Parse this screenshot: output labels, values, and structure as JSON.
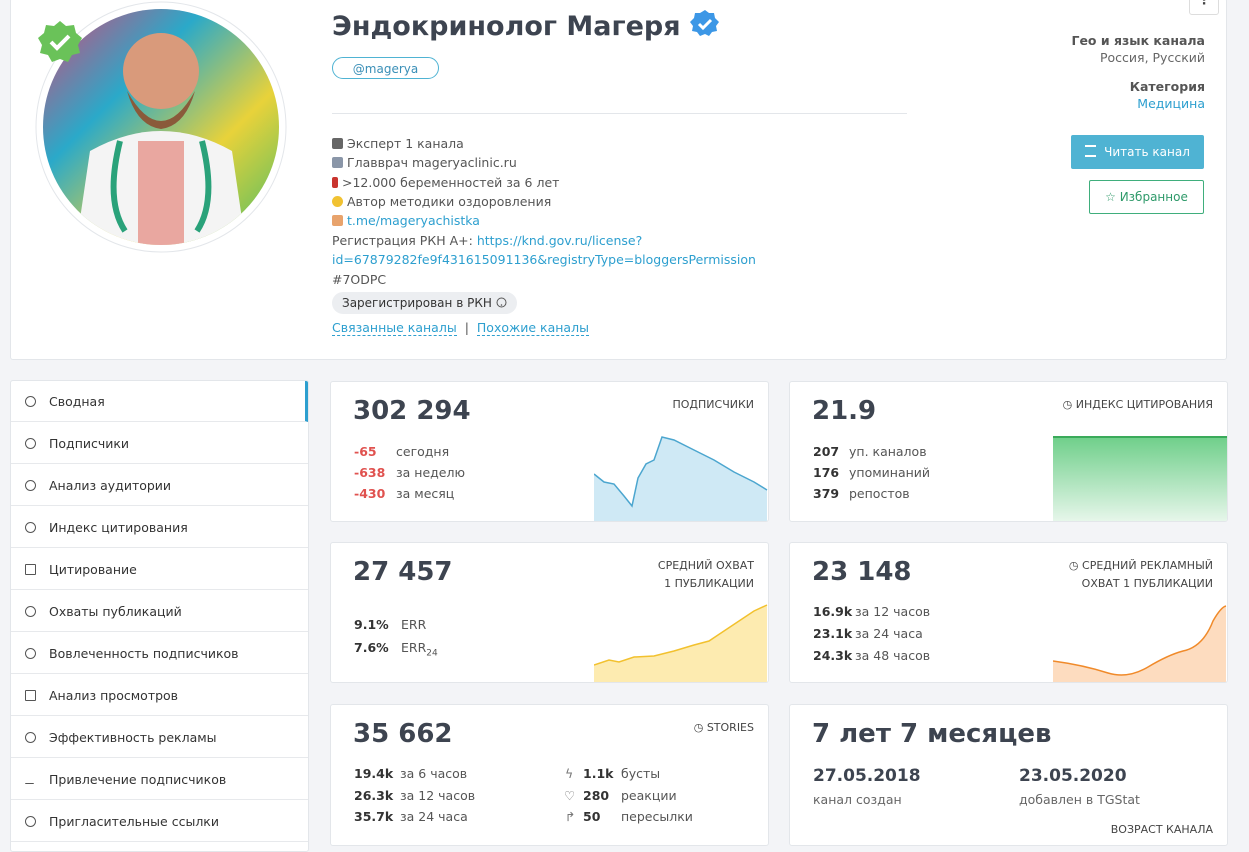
{
  "header": {
    "title": "Эндокринолог Магеря",
    "handle": "@magerya",
    "description": [
      "Эксперт 1 канала",
      "Главврач mageryaclinic.ru",
      ">12.000 беременностей за 6 лет",
      "Автор методики оздоровления"
    ],
    "channel_link": "t.me/mageryachistka",
    "registration_label": "Регистрация РКН А+:",
    "registration_link": [
      "https://knd.gov.ru/license?",
      "id=67879282fe9f431615091136&registryType=bloggersPermission"
    ],
    "code": "#7ODPC",
    "rkn_badge": "Зарегистрирован в РКН",
    "related": "Связанные каналы",
    "separator": "|",
    "similar": "Похожие каналы"
  },
  "side": {
    "geo_label": "Гео и язык канала",
    "geo_value": "Россия, Русский",
    "category_label": "Категория",
    "category_value": "Медицина",
    "read_button": "Читать канал",
    "favorite_button": "Избранное"
  },
  "menu": [
    "Сводная",
    "Подписчики",
    "Анализ аудитории",
    "Индекс цитирования",
    "Цитирование",
    "Охваты публикаций",
    "Вовлеченность подписчиков",
    "Анализ просмотров",
    "Эффективность рекламы",
    "Привлечение подписчиков",
    "Пригласительные ссылки"
  ],
  "cards": {
    "subscribers": {
      "value": "302 294",
      "label": "ПОДПИСЧИКИ",
      "rows": [
        [
          "-65",
          "сегодня"
        ],
        [
          "-638",
          "за неделю"
        ],
        [
          "-430",
          "за месяц"
        ]
      ]
    },
    "citation": {
      "value": "21.9",
      "label": "ИНДЕКС ЦИТИРОВАНИЯ",
      "rows": [
        [
          "207",
          "уп. каналов"
        ],
        [
          "176",
          "упоминаний"
        ],
        [
          "379",
          "репостов"
        ]
      ]
    },
    "reach": {
      "value": "27 457",
      "label": [
        "СРЕДНИЙ ОХВАТ",
        "1 ПУБЛИКАЦИИ"
      ],
      "rows": [
        [
          "9.1%",
          "ERR"
        ],
        [
          "7.6%",
          "ERR",
          "24"
        ]
      ]
    },
    "ad_reach": {
      "value": "23 148",
      "label": [
        "СРЕДНИЙ РЕКЛАМНЫЙ",
        "ОХВАТ 1 ПУБЛИКАЦИИ"
      ],
      "rows": [
        [
          "16.9k",
          "за 12 часов"
        ],
        [
          "23.1k",
          "за 24 часа"
        ],
        [
          "24.3k",
          "за 48 часов"
        ]
      ]
    },
    "stories": {
      "value": "35 662",
      "label": "STORIES",
      "rows": [
        [
          "19.4k",
          "за 6 часов"
        ],
        [
          "26.3k",
          "за 12 часов"
        ],
        [
          "35.7k",
          "за 24 часа"
        ]
      ],
      "extra": [
        [
          "1.1k",
          "бусты"
        ],
        [
          "280",
          "реакции"
        ],
        [
          "50",
          "пересылки"
        ]
      ]
    },
    "age": {
      "value": "7 лет 7 месяцев",
      "created": "27.05.2018",
      "created_label": "канал создан",
      "added": "23.05.2020",
      "added_label": "добавлен в TGStat",
      "footer": "ВОЗРАСТ КАНАЛА"
    }
  }
}
